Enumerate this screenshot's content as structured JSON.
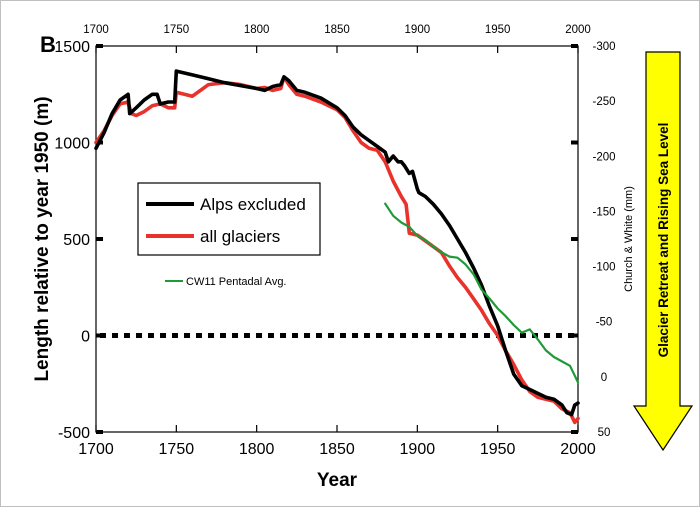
{
  "chart_data": {
    "type": "line",
    "panel_label": "B",
    "xlabel": "Year",
    "ylabel": "Length relative to year 1950 (m)",
    "y2label": "Church & White  (mm)",
    "side_label": "Glacier Retreat and Rising Sea Level",
    "xlim": [
      1700,
      2000
    ],
    "ylim": [
      -500,
      1500
    ],
    "y2lim": [
      50,
      -300
    ],
    "x_ticks": [
      "1700",
      "1750",
      "1800",
      "1850",
      "1900",
      "1950",
      "2000"
    ],
    "top_x_ticks": [
      "1700",
      "1750",
      "1800",
      "1850",
      "1900",
      "1950",
      "2000"
    ],
    "y_ticks": [
      "1500",
      "1000",
      "500",
      "0",
      "-500"
    ],
    "y2_ticks": [
      "-300",
      "-250",
      "-200",
      "-150",
      "-100",
      "-50",
      "0",
      "50"
    ],
    "legend": [
      {
        "label": "Alps excluded",
        "color": "#000000"
      },
      {
        "label": "all glaciers",
        "color": "#e8322b"
      }
    ],
    "annotation": "CW11 Pentadal Avg.",
    "reference_line": {
      "y": 0,
      "style": "dotted"
    },
    "series": [
      {
        "name": "Alps excluded",
        "color": "#000000",
        "axis": "left",
        "x": [
          1700,
          1705,
          1710,
          1715,
          1720,
          1721,
          1725,
          1730,
          1735,
          1738,
          1740,
          1745,
          1749,
          1750,
          1760,
          1770,
          1780,
          1790,
          1800,
          1805,
          1810,
          1815,
          1817,
          1820,
          1825,
          1830,
          1840,
          1850,
          1855,
          1860,
          1865,
          1870,
          1875,
          1880,
          1882,
          1885,
          1888,
          1890,
          1892,
          1895,
          1897,
          1900,
          1901,
          1905,
          1910,
          1915,
          1920,
          1925,
          1930,
          1935,
          1940,
          1945,
          1950,
          1955,
          1960,
          1965,
          1970,
          1975,
          1980,
          1985,
          1990,
          1993,
          1996,
          1998,
          2000
        ],
        "y": [
          970,
          1050,
          1150,
          1220,
          1250,
          1150,
          1180,
          1220,
          1250,
          1250,
          1200,
          1210,
          1210,
          1370,
          1350,
          1330,
          1310,
          1295,
          1280,
          1270,
          1290,
          1300,
          1340,
          1320,
          1270,
          1260,
          1230,
          1180,
          1140,
          1080,
          1040,
          1010,
          980,
          950,
          900,
          930,
          900,
          900,
          880,
          840,
          850,
          760,
          740,
          720,
          680,
          630,
          570,
          500,
          430,
          350,
          260,
          150,
          50,
          -80,
          -200,
          -260,
          -280,
          -300,
          -320,
          -330,
          -360,
          -400,
          -410,
          -360,
          -350
        ]
      },
      {
        "name": "all glaciers",
        "color": "#e8322b",
        "axis": "left",
        "x": [
          1700,
          1705,
          1710,
          1715,
          1720,
          1722,
          1725,
          1730,
          1735,
          1740,
          1745,
          1749,
          1750,
          1760,
          1770,
          1780,
          1790,
          1800,
          1805,
          1810,
          1815,
          1817,
          1820,
          1825,
          1830,
          1840,
          1850,
          1855,
          1860,
          1865,
          1870,
          1875,
          1880,
          1885,
          1890,
          1893,
          1895,
          1900,
          1905,
          1910,
          1915,
          1920,
          1925,
          1930,
          1935,
          1940,
          1945,
          1950,
          1955,
          1960,
          1965,
          1970,
          1975,
          1980,
          1985,
          1990,
          1995,
          1998,
          2000
        ],
        "y": [
          1000,
          1060,
          1140,
          1200,
          1210,
          1150,
          1140,
          1160,
          1190,
          1200,
          1180,
          1180,
          1260,
          1240,
          1300,
          1310,
          1300,
          1280,
          1285,
          1270,
          1280,
          1340,
          1300,
          1250,
          1240,
          1210,
          1170,
          1130,
          1060,
          1000,
          970,
          960,
          900,
          800,
          720,
          680,
          530,
          520,
          490,
          460,
          430,
          360,
          300,
          250,
          190,
          130,
          60,
          0,
          -80,
          -150,
          -230,
          -290,
          -320,
          -330,
          -340,
          -380,
          -400,
          -450,
          -430
        ]
      },
      {
        "name": "CW11 Pentadal Avg.",
        "color": "#1e9a38",
        "axis": "right",
        "x": [
          1880,
          1885,
          1890,
          1895,
          1900,
          1905,
          1910,
          1915,
          1920,
          1925,
          1930,
          1935,
          1940,
          1945,
          1950,
          1955,
          1960,
          1965,
          1970,
          1975,
          1980,
          1985,
          1990,
          1995,
          2000
        ],
        "y": [
          -157,
          -146,
          -140,
          -136,
          -128,
          -124,
          -118,
          -113,
          -109,
          -108,
          -102,
          -93,
          -79,
          -71,
          -62,
          -55,
          -47,
          -40,
          -43,
          -34,
          -24,
          -18,
          -14,
          -10,
          5
        ]
      }
    ]
  }
}
